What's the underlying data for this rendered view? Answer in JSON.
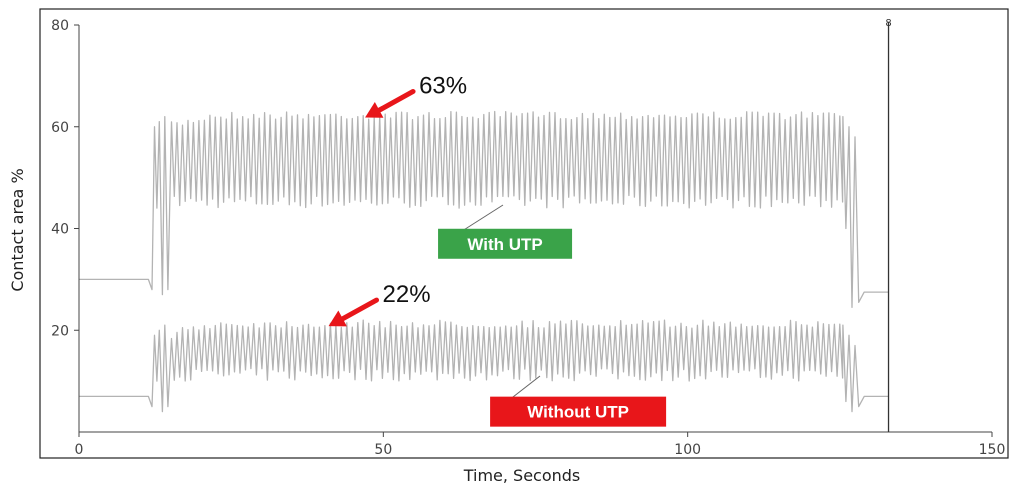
{
  "chart_data": {
    "type": "line",
    "title": "",
    "xlabel": "Time, Seconds",
    "ylabel": "Contact area %",
    "xlim": [
      0,
      150
    ],
    "ylim": [
      0,
      80
    ],
    "x_ticks": [
      "0",
      "50",
      "100",
      "150"
    ],
    "y_ticks": [
      "20",
      "40",
      "60",
      "80"
    ],
    "grid": false,
    "line_color": "#b3b3b3",
    "marker_x": 133,
    "marker_label": "8",
    "series": [
      {
        "name": "With UTP",
        "baseline_before": 30,
        "baseline_after": 27.5,
        "active_start": 12,
        "active_end": 129,
        "peak": 63,
        "trough": 44,
        "points": [
          [
            0,
            30.5
          ],
          [
            11,
            30.5
          ],
          [
            12,
            29
          ],
          [
            12.5,
            60
          ],
          [
            13.5,
            58
          ],
          [
            14.5,
            62
          ],
          [
            15.5,
            44
          ],
          [
            20,
            61
          ],
          [
            30,
            63
          ],
          [
            50,
            63
          ],
          [
            75,
            63
          ],
          [
            100,
            63
          ],
          [
            125,
            63
          ],
          [
            126.5,
            60
          ],
          [
            127.5,
            35
          ],
          [
            128.5,
            28
          ],
          [
            129,
            27.5
          ],
          [
            133,
            27.5
          ]
        ]
      },
      {
        "name": "Without UTP",
        "baseline_before": 7,
        "baseline_after": 7,
        "active_start": 12,
        "active_end": 129,
        "peak": 22,
        "trough": 10,
        "points": [
          [
            0,
            7
          ],
          [
            11,
            7
          ],
          [
            12,
            4
          ],
          [
            12.5,
            22
          ],
          [
            14,
            20
          ],
          [
            15,
            4
          ],
          [
            16,
            11
          ],
          [
            30,
            21.5
          ],
          [
            50,
            22
          ],
          [
            75,
            22
          ],
          [
            100,
            22
          ],
          [
            125,
            22
          ],
          [
            126.5,
            20
          ],
          [
            127.5,
            4
          ],
          [
            128.5,
            7
          ],
          [
            133,
            7
          ]
        ]
      }
    ],
    "annotations": [
      {
        "text": "63%",
        "x": 47,
        "y": 63,
        "color": "#e8161a"
      },
      {
        "text": "22%",
        "x": 41,
        "y": 22,
        "color": "#e8161a"
      }
    ],
    "labels": [
      {
        "text": "With UTP",
        "bg": "#3aa349",
        "x": 70,
        "y": 37
      },
      {
        "text": "Without UTP",
        "bg": "#e8161a",
        "x": 82,
        "y": 4
      }
    ]
  }
}
